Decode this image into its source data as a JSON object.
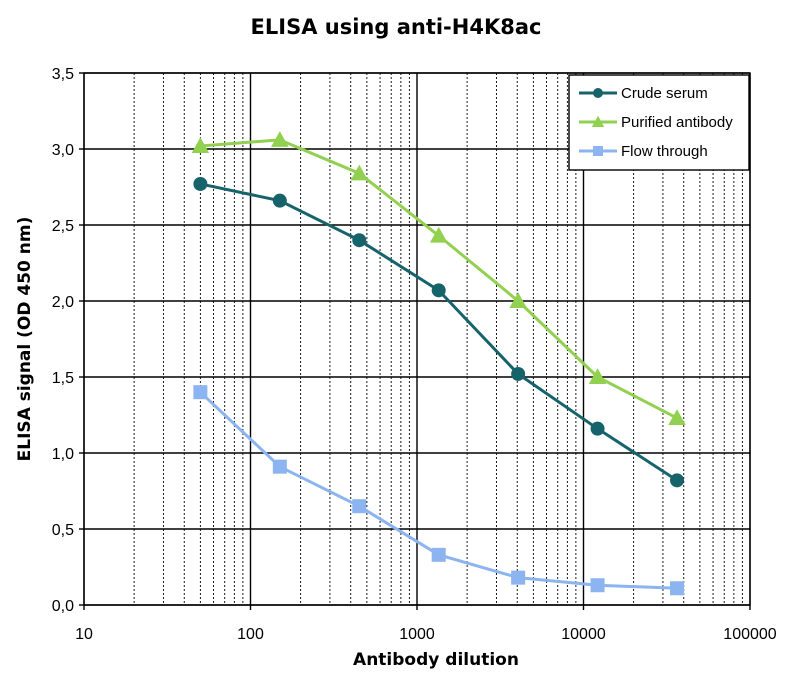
{
  "chart_data": {
    "type": "line",
    "title": "ELISA using anti-H4K8ac",
    "xlabel": "Antibody dilution",
    "ylabel": "ELISA signal (OD 450 nm)",
    "xscale": "log",
    "xlim": [
      10,
      100000
    ],
    "ylim": [
      0,
      3.5
    ],
    "x_ticks": [
      "10",
      "100",
      "1000",
      "10000",
      "100000"
    ],
    "y_ticks": [
      "0,0",
      "0,5",
      "1,0",
      "1,5",
      "2,0",
      "2,5",
      "3,0",
      "3,5"
    ],
    "grid": true,
    "legend_position": "top-right",
    "x": [
      50,
      150,
      450,
      1350,
      4050,
      12150,
      36450
    ],
    "series": [
      {
        "name": "Crude serum",
        "color": "#17636b",
        "marker": "circle",
        "values": [
          2.77,
          2.66,
          2.4,
          2.07,
          1.52,
          1.16,
          0.82
        ]
      },
      {
        "name": "Purified antibody",
        "color": "#92d050",
        "marker": "triangle",
        "values": [
          3.02,
          3.06,
          2.84,
          2.43,
          2.0,
          1.5,
          1.23
        ]
      },
      {
        "name": "Flow through",
        "color": "#8cb4f0",
        "marker": "square",
        "values": [
          1.4,
          0.91,
          0.65,
          0.33,
          0.18,
          0.13,
          0.11
        ]
      }
    ]
  }
}
